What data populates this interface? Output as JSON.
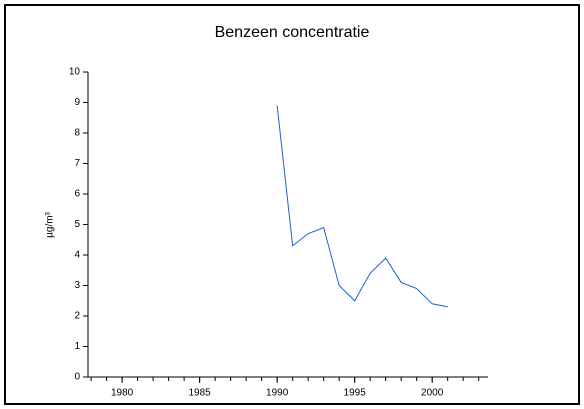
{
  "chart_data": {
    "type": "line",
    "title": "Benzeen concentratie",
    "y_label": "µg/m³",
    "x": [
      1990,
      1991,
      1992,
      1993,
      1994,
      1995,
      1996,
      1997,
      1998,
      1999,
      2000,
      2001
    ],
    "series": [
      {
        "color": "#1f5fd6",
        "values": [
          8.9,
          4.3,
          4.7,
          4.9,
          3.0,
          2.5,
          3.4,
          3.9,
          3.1,
          2.9,
          2.4,
          2.3
        ]
      }
    ],
    "xlim": [
      1977.8,
      2003.6
    ],
    "xticks": [
      1980,
      1985,
      1990,
      1995,
      2000
    ],
    "xminorticks": [
      1978,
      1979,
      1980,
      1981,
      1982,
      1983,
      1984,
      1985,
      1986,
      1987,
      1988,
      1989,
      1990,
      1991,
      1992,
      1993,
      1994,
      1995,
      1996,
      1997,
      1998,
      1999,
      2000,
      2001,
      2002,
      2003
    ],
    "ylim": [
      0,
      10
    ],
    "yticks": [
      0,
      1,
      2,
      3,
      4,
      5,
      6,
      7,
      8,
      9,
      10
    ]
  }
}
